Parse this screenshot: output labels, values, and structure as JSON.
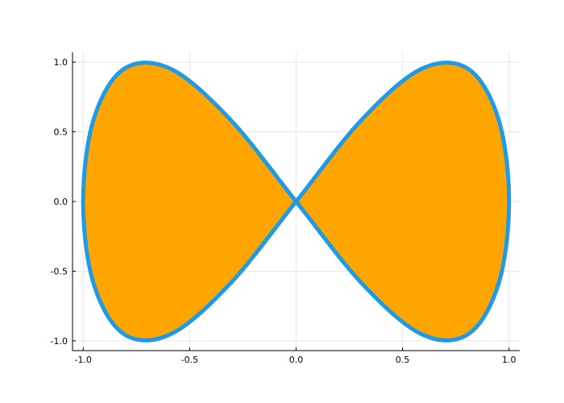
{
  "chart_data": {
    "type": "area",
    "title": "",
    "xlabel": "",
    "ylabel": "",
    "xlim": [
      -1.05,
      1.05
    ],
    "ylim": [
      -1.07,
      1.07
    ],
    "grid": true,
    "legend": "none",
    "x_ticks": [
      -1.0,
      -0.5,
      0.0,
      0.5,
      1.0
    ],
    "x_tick_labels": [
      "-1.0",
      "-0.5",
      "0.0",
      "0.5",
      "1.0"
    ],
    "y_ticks": [
      -1.0,
      -0.5,
      0.0,
      0.5,
      1.0
    ],
    "y_tick_labels": [
      "-1.0",
      "-0.5",
      "0.0",
      "0.5",
      "1.0"
    ],
    "series": [
      {
        "curve": "x = cos(t), y = sin(2t), t in [0, 2π]",
        "line_color": "#1f9ae6",
        "fill_color": "#ffa500",
        "x": [
          1.0,
          0.951,
          0.809,
          0.588,
          0.309,
          0.0,
          -0.309,
          -0.588,
          -0.809,
          -0.951,
          -1.0,
          -0.951,
          -0.809,
          -0.588,
          -0.309,
          0.0,
          0.309,
          0.588,
          0.809,
          0.951,
          1.0
        ],
        "y": [
          0.0,
          0.588,
          0.951,
          0.951,
          0.588,
          0.0,
          -0.588,
          -0.951,
          -0.951,
          -0.588,
          0.0,
          0.588,
          0.951,
          0.951,
          0.588,
          0.0,
          -0.588,
          -0.951,
          -0.951,
          -0.588,
          0.0
        ]
      }
    ]
  }
}
